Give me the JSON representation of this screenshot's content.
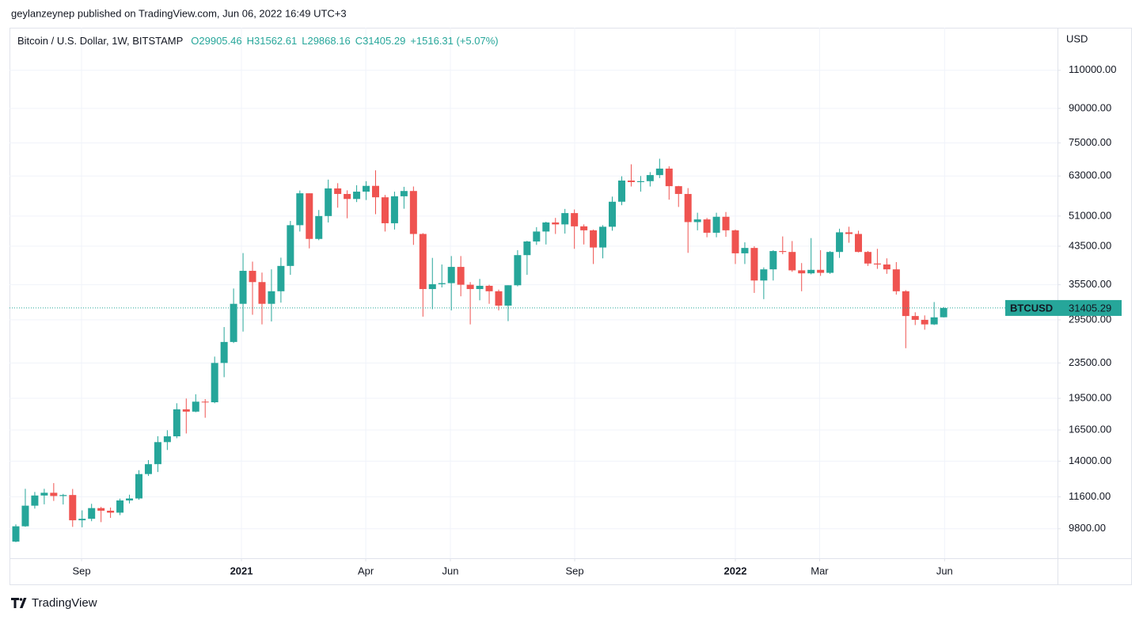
{
  "header": {
    "published": "geylanzeynep published on TradingView.com, Jun 06, 2022 16:49 UTC+3",
    "brand": "TradingView"
  },
  "chart_data": {
    "type": "candlestick",
    "title": "Bitcoin / U.S. Dollar, 1W, BITSTAMP",
    "legend_values": [
      "O29905.46",
      "H31562.61",
      "L29868.16",
      "C31405.29",
      "+1516.31 (+5.07%)"
    ],
    "y_axis_label": "USD",
    "log_scale": true,
    "grid": true,
    "up_color": "#26a69a",
    "down_color": "#ef5350",
    "last_price": {
      "symbol": "BTCUSD",
      "value": 31405.29
    },
    "ylim": [
      8390,
      137700
    ],
    "yticks": [
      {
        "value": 9800,
        "label": "9800.00"
      },
      {
        "value": 11600,
        "label": "11600.00"
      },
      {
        "value": 14000,
        "label": "14000.00"
      },
      {
        "value": 16500,
        "label": "16500.00"
      },
      {
        "value": 19500,
        "label": "19500.00"
      },
      {
        "value": 23500,
        "label": "23500.00"
      },
      {
        "value": 29500,
        "label": "29500.00"
      },
      {
        "value": 35500,
        "label": "35500.00"
      },
      {
        "value": 43500,
        "label": "43500.00"
      },
      {
        "value": 51000,
        "label": "51000.00"
      },
      {
        "value": 63000,
        "label": "63000.00"
      },
      {
        "value": 75000,
        "label": "75000.00"
      },
      {
        "value": 90000,
        "label": "90000.00"
      },
      {
        "value": 110000,
        "label": "110000.00"
      }
    ],
    "xlim": [
      -0.67,
      110.03
    ],
    "xticks": [
      {
        "value": 6.94,
        "label": "Sep"
      },
      {
        "value": 23.83,
        "label": "2021"
      },
      {
        "value": 36.96,
        "label": "Apr"
      },
      {
        "value": 45.9,
        "label": "Jun"
      },
      {
        "value": 59.03,
        "label": "Sep"
      },
      {
        "value": 76.0,
        "label": "2022"
      },
      {
        "value": 84.9,
        "label": "Mar"
      },
      {
        "value": 98.1,
        "label": "Jun"
      }
    ],
    "categories": [
      null,
      null,
      null,
      null,
      null,
      null,
      null,
      null,
      null,
      null,
      null,
      null,
      null,
      null,
      null,
      null,
      null,
      null,
      null,
      null,
      null,
      null,
      null,
      null,
      null,
      null,
      null,
      null,
      null,
      null,
      null,
      null,
      null,
      null,
      null,
      null,
      null,
      null,
      null,
      null,
      null,
      null,
      null,
      null,
      null,
      null,
      null,
      null,
      null,
      null,
      null,
      null,
      null,
      null,
      null,
      null,
      null,
      null,
      null,
      null,
      null,
      null,
      null,
      null,
      null,
      null,
      null,
      null,
      null,
      null,
      null,
      null,
      null,
      null,
      null,
      null,
      null,
      null,
      null,
      null,
      null,
      null,
      null,
      null,
      null,
      null,
      null,
      null,
      null,
      null,
      null,
      null,
      null,
      null,
      null,
      null,
      null,
      null,
      null
    ],
    "open": [
      9160,
      9930,
      11070,
      11680,
      11850,
      11650,
      11710,
      10250,
      10330,
      10930,
      10780,
      10670,
      11380,
      11500,
      13080,
      13780,
      15480,
      15960,
      18400,
      18180,
      19160,
      19100,
      23500,
      26250,
      32100,
      38200,
      36000,
      32100,
      34300,
      39200,
      48600,
      57500,
      45200,
      51000,
      59000,
      57300,
      55800,
      58000,
      59800,
      56300,
      49100,
      56600,
      58200,
      46400,
      34700,
      35600,
      35800,
      39000,
      35500,
      34700,
      35300,
      34300,
      31800,
      35400,
      41500,
      44600,
      47000,
      49300,
      48800,
      51800,
      48300,
      47300,
      43200,
      48200,
      55000,
      61500,
      61000,
      61300,
      63300,
      65500,
      59700,
      57300,
      49400,
      50100,
      46700,
      50800,
      47300,
      41900,
      43100,
      36300,
      38500,
      42400,
      42200,
      38300,
      37700,
      38400,
      37800,
      42200,
      46800,
      46400,
      42200,
      39700,
      39500,
      38500,
      34300,
      30100,
      29500,
      28800,
      29905.46
    ],
    "high": [
      10030,
      12100,
      11900,
      12100,
      12470,
      11780,
      12090,
      10800,
      11180,
      11000,
      10960,
      11490,
      11730,
      13350,
      14080,
      15970,
      16480,
      19000,
      19480,
      19920,
      19420,
      24300,
      28400,
      34800,
      41950,
      40100,
      37850,
      38500,
      40950,
      49700,
      58350,
      57500,
      52650,
      61800,
      60650,
      58400,
      60000,
      61300,
      64900,
      57000,
      58000,
      59500,
      59600,
      46600,
      40900,
      39500,
      41300,
      41300,
      36000,
      36600,
      35500,
      34600,
      35400,
      42600,
      44750,
      48100,
      49500,
      50500,
      52950,
      52800,
      48800,
      47500,
      48600,
      56500,
      62900,
      67000,
      63000,
      64300,
      69000,
      66300,
      59800,
      59100,
      51900,
      50500,
      51900,
      52100,
      47500,
      44400,
      43500,
      38900,
      42600,
      45800,
      44700,
      39800,
      45400,
      42600,
      42400,
      47700,
      48200,
      47200,
      42400,
      42900,
      40800,
      40000,
      34500,
      30700,
      30200,
      32400,
      31562.61
    ],
    "low": [
      9130,
      9900,
      10900,
      11150,
      11350,
      11140,
      9900,
      9880,
      10200,
      10150,
      10380,
      10530,
      11200,
      11420,
      12950,
      13220,
      14850,
      15800,
      16200,
      18120,
      17600,
      19000,
      21800,
      26100,
      27730,
      30300,
      28800,
      29250,
      32300,
      37400,
      47000,
      43000,
      44900,
      49300,
      53300,
      50400,
      54900,
      55500,
      51500,
      47000,
      47500,
      53000,
      43800,
      30000,
      31200,
      35000,
      31000,
      33400,
      28800,
      32700,
      32100,
      31000,
      29300,
      35200,
      37400,
      43800,
      43900,
      46400,
      46500,
      42900,
      43900,
      39600,
      40800,
      47200,
      54000,
      59600,
      58000,
      59600,
      62300,
      55600,
      53500,
      42000,
      47300,
      45600,
      45600,
      45700,
      39600,
      39600,
      34000,
      32900,
      36300,
      41700,
      38000,
      34300,
      37500,
      37200,
      37600,
      40900,
      44300,
      42100,
      39200,
      38600,
      37600,
      33700,
      25400,
      28700,
      28000,
      28700,
      29868.16
    ],
    "close": [
      9930,
      11070,
      11680,
      11850,
      11650,
      11710,
      10250,
      10330,
      10930,
      10780,
      10670,
      11380,
      11500,
      13080,
      13780,
      15480,
      15960,
      18400,
      18180,
      19160,
      19100,
      23500,
      26250,
      32100,
      38200,
      36000,
      32100,
      34300,
      39200,
      48600,
      57500,
      45200,
      51000,
      59000,
      57300,
      55800,
      58000,
      59800,
      56300,
      49100,
      56600,
      58200,
      46400,
      34700,
      35600,
      35800,
      39000,
      35500,
      34700,
      35300,
      34300,
      31800,
      35400,
      41500,
      44600,
      47000,
      49300,
      48800,
      51800,
      48300,
      47300,
      43200,
      48200,
      55000,
      61500,
      61000,
      61300,
      63300,
      65500,
      59700,
      57300,
      49400,
      50100,
      46700,
      50800,
      47300,
      41900,
      43100,
      36300,
      38500,
      42400,
      42200,
      38300,
      37700,
      38400,
      37800,
      42200,
      46800,
      46400,
      42200,
      39700,
      39500,
      38500,
      34300,
      30100,
      29500,
      28800,
      29889,
      31405.29
    ]
  }
}
